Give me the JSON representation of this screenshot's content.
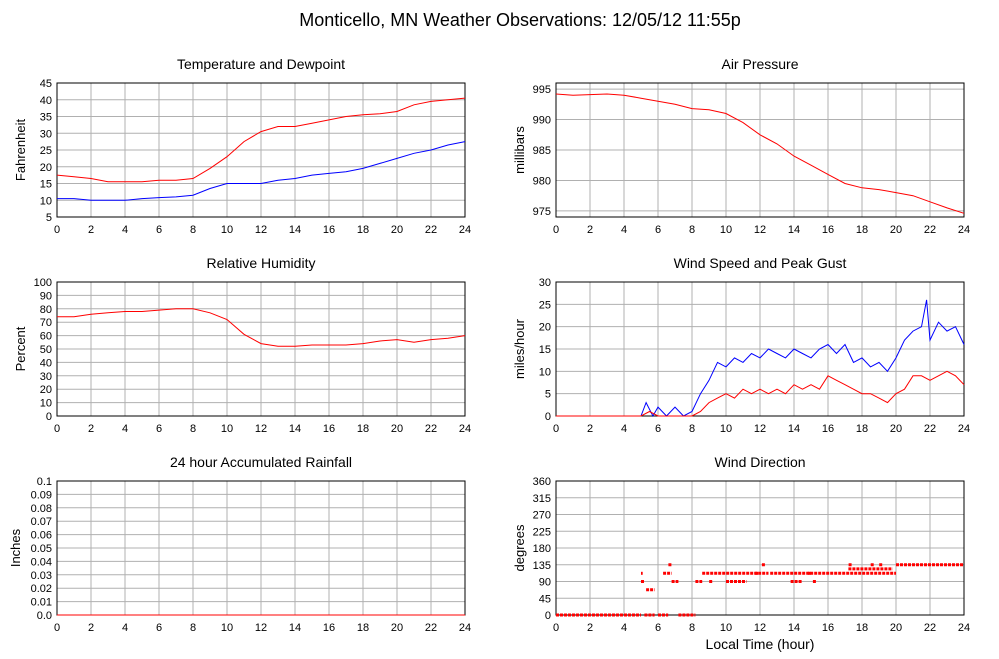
{
  "page": {
    "title": "Monticello, MN Weather Observations: 12/05/12 11:55p",
    "xlabel": "Local Time (hour)"
  },
  "colors": {
    "red": "#ff0000",
    "blue": "#0000ff",
    "grid": "#b0b0b0",
    "axis": "#000000"
  },
  "chart_data": [
    {
      "id": "temp",
      "type": "line",
      "title": "Temperature and Dewpoint",
      "ylabel": "Fahrenheit",
      "xlim": [
        0,
        24
      ],
      "ylim": [
        5,
        45
      ],
      "xticks": [
        "0",
        "2",
        "4",
        "6",
        "8",
        "10",
        "12",
        "14",
        "16",
        "18",
        "20",
        "22",
        "24"
      ],
      "yticks": [
        "5",
        "10",
        "15",
        "20",
        "25",
        "30",
        "35",
        "40",
        "45"
      ],
      "grid": true,
      "series": [
        {
          "color": "#ff0000",
          "x": [
            0,
            1,
            2,
            3,
            4,
            5,
            6,
            7,
            8,
            9,
            10,
            11,
            12,
            13,
            14,
            15,
            16,
            17,
            18,
            19,
            20,
            21,
            22,
            23,
            24
          ],
          "values": [
            17.5,
            17,
            16.5,
            15.5,
            15.5,
            15.5,
            16,
            16,
            16.5,
            19.5,
            23,
            27.5,
            30.5,
            32,
            32,
            33,
            34,
            35,
            35.5,
            35.8,
            36.5,
            38.5,
            39.5,
            40,
            40.5
          ]
        },
        {
          "color": "#0000ff",
          "x": [
            0,
            1,
            2,
            3,
            4,
            5,
            6,
            7,
            8,
            9,
            10,
            11,
            12,
            13,
            14,
            15,
            16,
            17,
            18,
            19,
            20,
            21,
            22,
            23,
            24
          ],
          "values": [
            10.5,
            10.5,
            10,
            10,
            10,
            10.5,
            10.8,
            11,
            11.5,
            13.5,
            15,
            15,
            15,
            16,
            16.5,
            17.5,
            18,
            18.5,
            19.5,
            21,
            22.5,
            24,
            25,
            26.5,
            27.5
          ]
        }
      ]
    },
    {
      "id": "pressure",
      "type": "line",
      "title": "Air Pressure",
      "ylabel": "millibars",
      "xlim": [
        0,
        24
      ],
      "ylim": [
        974,
        996
      ],
      "xticks": [
        "0",
        "2",
        "4",
        "6",
        "8",
        "10",
        "12",
        "14",
        "16",
        "18",
        "20",
        "22",
        "24"
      ],
      "yticks": [
        "975",
        "980",
        "985",
        "990",
        "995"
      ],
      "grid": true,
      "series": [
        {
          "color": "#ff0000",
          "x": [
            0,
            1,
            2,
            3,
            4,
            5,
            6,
            7,
            8,
            9,
            10,
            11,
            12,
            13,
            14,
            15,
            16,
            17,
            18,
            19,
            20,
            21,
            22,
            23,
            24
          ],
          "values": [
            994.2,
            994,
            994.1,
            994.2,
            994,
            993.5,
            993,
            992.5,
            991.8,
            991.6,
            991,
            989.5,
            987.5,
            986,
            984,
            982.5,
            981,
            979.5,
            978.8,
            978.5,
            978,
            977.5,
            976.5,
            975.5,
            974.6
          ]
        }
      ]
    },
    {
      "id": "humidity",
      "type": "line",
      "title": "Relative Humidity",
      "ylabel": "Percent",
      "xlim": [
        0,
        24
      ],
      "ylim": [
        0,
        100
      ],
      "xticks": [
        "0",
        "2",
        "4",
        "6",
        "8",
        "10",
        "12",
        "14",
        "16",
        "18",
        "20",
        "22",
        "24"
      ],
      "yticks": [
        "0",
        "10",
        "20",
        "30",
        "40",
        "50",
        "60",
        "70",
        "80",
        "90",
        "100"
      ],
      "grid": true,
      "series": [
        {
          "color": "#ff0000",
          "x": [
            0,
            1,
            2,
            3,
            4,
            5,
            6,
            7,
            8,
            9,
            10,
            11,
            12,
            13,
            14,
            15,
            16,
            17,
            18,
            19,
            20,
            21,
            22,
            23,
            24
          ],
          "values": [
            74,
            74,
            76,
            77,
            78,
            78,
            79,
            80,
            80,
            77,
            72,
            61,
            54,
            52,
            52,
            53,
            53,
            53,
            54,
            56,
            57,
            55,
            57,
            58,
            60
          ]
        }
      ]
    },
    {
      "id": "wind",
      "type": "line",
      "title": "Wind Speed and Peak Gust",
      "ylabel": "miles/hour",
      "xlim": [
        0,
        24
      ],
      "ylim": [
        0,
        30
      ],
      "xticks": [
        "0",
        "2",
        "4",
        "6",
        "8",
        "10",
        "12",
        "14",
        "16",
        "18",
        "20",
        "22",
        "24"
      ],
      "yticks": [
        "0",
        "5",
        "10",
        "15",
        "20",
        "25",
        "30"
      ],
      "grid": true,
      "series": [
        {
          "color": "#0000ff",
          "x": [
            0,
            1,
            2,
            3,
            4,
            5,
            5.3,
            5.7,
            6,
            6.5,
            7,
            7.5,
            8,
            8.5,
            9,
            9.5,
            10,
            10.5,
            11,
            11.5,
            12,
            12.5,
            13,
            13.5,
            14,
            14.5,
            15,
            15.5,
            16,
            16.5,
            17,
            17.5,
            18,
            18.5,
            19,
            19.5,
            20,
            20.5,
            21,
            21.5,
            21.8,
            22,
            22.5,
            23,
            23.5,
            24
          ],
          "values": [
            0,
            0,
            0,
            0,
            0,
            0,
            3,
            0,
            2,
            0,
            2,
            0,
            1,
            5,
            8,
            12,
            11,
            13,
            12,
            14,
            13,
            15,
            14,
            13,
            15,
            14,
            13,
            15,
            16,
            14,
            16,
            12,
            13,
            11,
            12,
            10,
            13,
            17,
            19,
            20,
            26,
            17,
            21,
            19,
            20,
            16
          ]
        },
        {
          "color": "#ff0000",
          "x": [
            0,
            1,
            2,
            3,
            4,
            5,
            5.5,
            6,
            6.5,
            7,
            7.5,
            8,
            8.5,
            9,
            9.5,
            10,
            10.5,
            11,
            11.5,
            12,
            12.5,
            13,
            13.5,
            14,
            14.5,
            15,
            15.5,
            16,
            16.5,
            17,
            17.5,
            18,
            18.5,
            19,
            19.5,
            20,
            20.5,
            21,
            21.5,
            22,
            22.5,
            23,
            23.5,
            24
          ],
          "values": [
            0,
            0,
            0,
            0,
            0,
            0,
            1,
            0,
            0,
            0,
            0,
            0,
            1,
            3,
            4,
            5,
            4,
            6,
            5,
            6,
            5,
            6,
            5,
            7,
            6,
            7,
            6,
            9,
            8,
            7,
            6,
            5,
            5,
            4,
            3,
            5,
            6,
            9,
            9,
            8,
            9,
            10,
            9,
            7
          ]
        }
      ]
    },
    {
      "id": "rain",
      "type": "line",
      "title": "24 hour Accumulated Rainfall",
      "ylabel": "Inches",
      "xlim": [
        0,
        24
      ],
      "ylim": [
        0,
        0.1
      ],
      "xticks": [
        "0",
        "2",
        "4",
        "6",
        "8",
        "10",
        "12",
        "14",
        "16",
        "18",
        "20",
        "22",
        "24"
      ],
      "yticks": [
        "0.0",
        "0.01",
        "0.02",
        "0.03",
        "0.04",
        "0.05",
        "0.06",
        "0.07",
        "0.08",
        "0.09",
        "0.1"
      ],
      "grid": true,
      "series": [
        {
          "color": "#ff0000",
          "x": [
            0,
            24
          ],
          "values": [
            0,
            0
          ]
        }
      ]
    },
    {
      "id": "direction",
      "type": "scatter",
      "title": "Wind Direction",
      "ylabel": "degrees",
      "xlim": [
        0,
        24
      ],
      "ylim": [
        0,
        360
      ],
      "xticks": [
        "0",
        "2",
        "4",
        "6",
        "8",
        "10",
        "12",
        "14",
        "16",
        "18",
        "20",
        "22",
        "24"
      ],
      "yticks": [
        "0",
        "45",
        "90",
        "135",
        "180",
        "225",
        "270",
        "315",
        "360"
      ],
      "grid": true,
      "series": [
        {
          "color": "#ff0000",
          "segments": [
            {
              "x": [
                0,
                5.0
              ],
              "y": 0
            },
            {
              "x": [
                5.2,
                5.8
              ],
              "y": 0
            },
            {
              "x": [
                6.0,
                6.6
              ],
              "y": 0
            },
            {
              "x": [
                7.2,
                8.2
              ],
              "y": 0
            },
            {
              "x": [
                5.3,
                5.8
              ],
              "y": 68
            },
            {
              "x": [
                5.0,
                5.2
              ],
              "y": 90
            },
            {
              "x": [
                6.8,
                7.2
              ],
              "y": 90
            },
            {
              "x": [
                8.2,
                8.6
              ],
              "y": 90
            },
            {
              "x": [
                10.0,
                11.2
              ],
              "y": 90
            },
            {
              "x": [
                13.8,
                14.5
              ],
              "y": 90
            },
            {
              "x": [
                5.0,
                5.1
              ],
              "y": 112
            },
            {
              "x": [
                6.3,
                6.8
              ],
              "y": 112
            },
            {
              "x": [
                8.6,
                12.5
              ],
              "y": 112
            },
            {
              "x": [
                12.6,
                20.0
              ],
              "y": 112
            },
            {
              "x": [
                17.2,
                19.8
              ],
              "y": 124
            },
            {
              "x": [
                20.0,
                24.0
              ],
              "y": 135
            }
          ],
          "points": [
            [
              6.7,
              135
            ],
            [
              12.2,
              135
            ],
            [
              17.3,
              135
            ],
            [
              18.6,
              135
            ],
            [
              19.1,
              135
            ],
            [
              9.1,
              90
            ],
            [
              15.2,
              90
            ],
            [
              14.9,
              112
            ],
            [
              11.8,
              112
            ]
          ]
        }
      ]
    }
  ]
}
